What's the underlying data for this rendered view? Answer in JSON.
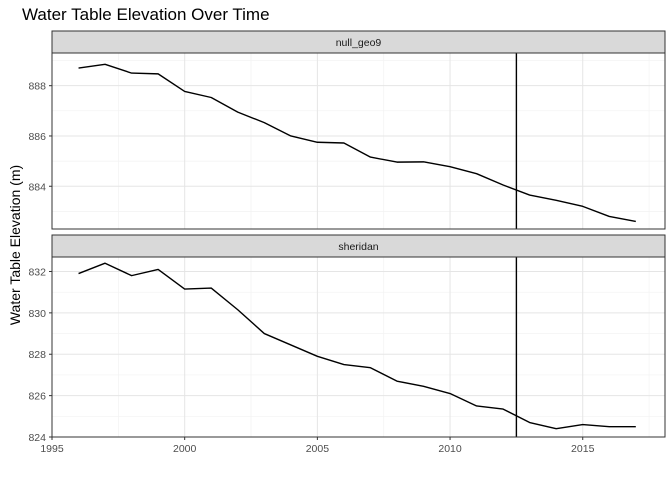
{
  "chart_data": {
    "type": "line",
    "title": "Water Table Elevation Over Time",
    "xlabel": "",
    "ylabel": "Water Table Elevation (m)",
    "theme": "bw",
    "grid": true,
    "x_ticks": [
      1995,
      2000,
      2005,
      2010,
      2015
    ],
    "xlim": [
      1995,
      2018.1
    ],
    "vline_x": 2012.5,
    "line_color": "#000000",
    "strip_fill": "#d9d9d9",
    "panels": [
      {
        "name": "null_geo9",
        "ylim": [
          882.3,
          889.3
        ],
        "y_ticks": [
          884,
          886,
          888
        ],
        "x": [
          1996,
          1997,
          1998,
          1999,
          2000,
          2001,
          2002,
          2003,
          2004,
          2005,
          2006,
          2007,
          2008,
          2009,
          2010,
          2011,
          2012,
          2013,
          2014,
          2015,
          2016,
          2017
        ],
        "y": [
          888.7,
          888.85,
          888.5,
          888.47,
          887.77,
          887.53,
          886.95,
          886.53,
          886.0,
          885.75,
          885.72,
          885.16,
          884.96,
          884.97,
          884.78,
          884.5,
          884.05,
          883.65,
          883.44,
          883.2,
          882.8,
          882.6
        ]
      },
      {
        "name": "sheridan",
        "ylim": [
          824.0,
          832.7
        ],
        "y_ticks": [
          824,
          826,
          828,
          830,
          832
        ],
        "x": [
          1996,
          1997,
          1998,
          1999,
          2000,
          2001,
          2002,
          2003,
          2004,
          2005,
          2006,
          2007,
          2008,
          2009,
          2010,
          2011,
          2012,
          2013,
          2014,
          2015,
          2016,
          2017
        ],
        "y": [
          831.9,
          832.4,
          831.8,
          832.1,
          831.15,
          831.2,
          830.15,
          829.0,
          828.45,
          827.9,
          827.5,
          827.35,
          826.7,
          826.45,
          826.1,
          825.5,
          825.35,
          824.7,
          824.4,
          824.6,
          824.5,
          824.5
        ]
      }
    ]
  }
}
